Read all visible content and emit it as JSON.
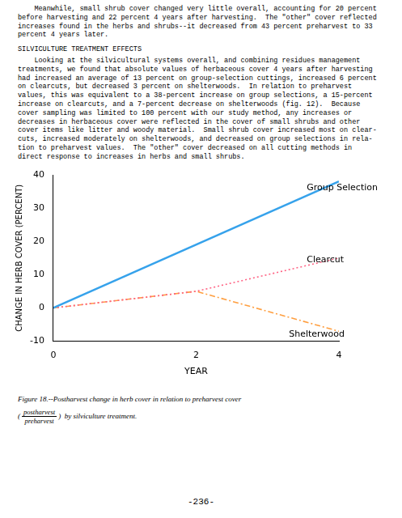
{
  "chart_data": {
    "type": "line",
    "xlabel": "YEAR",
    "ylabel": "CHANGE IN HERB COVER (PERCENT)",
    "series": [
      {
        "x": [
          0,
          4
        ],
        "values": [
          0,
          38
        ],
        "line_style": "solid"
      },
      {
        "x": [
          0,
          2,
          4
        ],
        "values": [
          0,
          5,
          15
        ],
        "line_style": "dotted"
      },
      {
        "x": [
          0,
          2,
          4
        ],
        "values": [
          0,
          5,
          -7
        ],
        "line_style": "dashdot"
      }
    ],
    "annotations": [
      {
        "text": "Group Selection",
        "x": 3.55,
        "y": 36
      },
      {
        "text": "Clearcut",
        "x": 3.55,
        "y": 14.5
      },
      {
        "text": "Shelterwood",
        "x": 3.3,
        "y": -8.0
      }
    ],
    "xlim": [
      0,
      4
    ],
    "ylim": [
      -10,
      40
    ],
    "xticks": [
      0,
      2,
      4
    ],
    "yticks": [
      -10,
      0,
      10,
      20,
      30,
      40
    ],
    "grid": false
  },
  "page_text": {
    "paragraph": [
      "    Meanwhile, small shrub cover changed very little overall, accounting for 20 percent",
      "before harvesting and 22 percent 4 years after harvesting.  The \"other\" cover reflected",
      "increases found in the herbs and shrubs--it decreased from 43 percent preharvest to 33",
      "percent 4 years later."
    ],
    "section_header": "SILVICULTURE TREATMENT EFFECTS",
    "body": [
      "    Looking at the silvicultural systems overall, and combining residues management",
      "treatments, we found that absolute values of herbaceous cover 4 years after harvesting",
      "had increased an average of 13 percent on group-selection cuttings, increased 6 percent",
      "on clearcuts, but decreased 3 percent on shelterwoods.  In relation to preharvest",
      "values, this was equivalent to a 38-percent increase on group selections, a 15-percent",
      "increase on clearcuts, and a 7-percent decrease on shelterwoods (fig. 12).  Because",
      "cover sampling was limited to 100 percent with our study method, any increases or",
      "decreases in herbaceous cover were reflected in the cover of small shrubs and other",
      "cover items like litter and woody material.  Small shrub cover increased most on clear-",
      "cuts, increased moderately on shelterwoods, and decreased on group selections in rela-",
      "tion to preharvest values.  The \"other\" cover decreased on all cutting methods in",
      "direct response to increases in herbs and small shrubs."
    ],
    "caption_line1": "Figure 18.--Postharvest change in herb cover in relation to preharvest cover",
    "caption_prefix": "(",
    "caption_fraction_top": "postharvest",
    "caption_fraction_bot": "preharvest",
    "caption_suffix": ")  by silviculture treatment.",
    "page_number": "-236-"
  }
}
